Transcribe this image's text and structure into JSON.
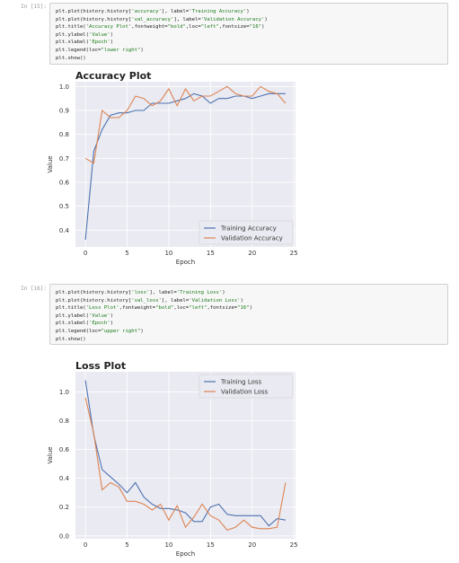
{
  "cells": [
    {
      "prompt": "In [15]:",
      "code": [
        [
          [
            "plt.plot(history.history[",
            ""
          ],
          [
            "'accuracy'",
            "s"
          ],
          [
            "], label=",
            ""
          ],
          [
            "'Training Accuracy'",
            "s"
          ],
          [
            ")",
            ""
          ]
        ],
        [
          [
            "plt.plot(history.history[",
            ""
          ],
          [
            "'val_accuracy'",
            "s"
          ],
          [
            "], label=",
            ""
          ],
          [
            "'Validation Accuracy'",
            "s"
          ],
          [
            ")",
            ""
          ]
        ],
        [
          [
            "plt.title(",
            ""
          ],
          [
            "'Accuracy Plot'",
            "s"
          ],
          [
            ",fontweight=",
            ""
          ],
          [
            "\"bold\"",
            "s"
          ],
          [
            ",loc=",
            ""
          ],
          [
            "\"left\"",
            "s"
          ],
          [
            ",fontsize=",
            ""
          ],
          [
            "\"16\"",
            "s"
          ],
          [
            ")",
            ""
          ]
        ],
        [
          [
            "plt.ylabel(",
            ""
          ],
          [
            "'Value'",
            "s"
          ],
          [
            ")",
            ""
          ]
        ],
        [
          [
            "plt.xlabel(",
            ""
          ],
          [
            "'Epoch'",
            "s"
          ],
          [
            ")",
            ""
          ]
        ],
        [
          [
            "plt.legend(loc=",
            ""
          ],
          [
            "\"lower right\"",
            "s"
          ],
          [
            ")",
            ""
          ]
        ],
        [
          [
            "plt.show()",
            ""
          ]
        ]
      ]
    },
    {
      "prompt": "In [16]:",
      "code": [
        [
          [
            "plt.plot(history.history[",
            ""
          ],
          [
            "'loss'",
            "s"
          ],
          [
            "], label=",
            ""
          ],
          [
            "'Training Loss'",
            "s"
          ],
          [
            ")",
            ""
          ]
        ],
        [
          [
            "plt.plot(history.history[",
            ""
          ],
          [
            "'val_loss'",
            "s"
          ],
          [
            "], label=",
            ""
          ],
          [
            "'Validation Loss'",
            "s"
          ],
          [
            ")",
            ""
          ]
        ],
        [
          [
            "plt.title(",
            ""
          ],
          [
            "'Loss Plot'",
            "s"
          ],
          [
            ",fontweight=",
            ""
          ],
          [
            "\"bold\"",
            "s"
          ],
          [
            ",loc=",
            ""
          ],
          [
            "\"left\"",
            "s"
          ],
          [
            ",fontsize=",
            ""
          ],
          [
            "\"16\"",
            "s"
          ],
          [
            ")",
            ""
          ]
        ],
        [
          [
            "plt.ylabel(",
            ""
          ],
          [
            "'Value'",
            "s"
          ],
          [
            ")",
            ""
          ]
        ],
        [
          [
            "plt.xlabel(",
            ""
          ],
          [
            "'Epoch'",
            "s"
          ],
          [
            ")",
            ""
          ]
        ],
        [
          [
            "plt.legend(loc=",
            ""
          ],
          [
            "\"upper right\"",
            "s"
          ],
          [
            ")",
            ""
          ]
        ],
        [
          [
            "plt.show()",
            ""
          ]
        ]
      ]
    }
  ],
  "chart_data": [
    {
      "type": "line",
      "title": "Accuracy Plot",
      "xlabel": "Epoch",
      "ylabel": "Value",
      "xlim": [
        -1.2,
        25.2
      ],
      "ylim": [
        0.33,
        1.02
      ],
      "xticks": [
        0,
        5,
        10,
        15,
        20,
        25
      ],
      "yticks": [
        0.4,
        0.5,
        0.6,
        0.7,
        0.8,
        0.9,
        1.0
      ],
      "ytick_labels": [
        "0.4",
        "0.5",
        "0.6",
        "0.7",
        "0.8",
        "0.9",
        "1.0"
      ],
      "legend_loc": "lower-right",
      "grid": true,
      "series": [
        {
          "name": "Training Accuracy",
          "color": "#4c72b0",
          "values": [
            0.36,
            0.73,
            0.82,
            0.88,
            0.89,
            0.89,
            0.9,
            0.9,
            0.93,
            0.93,
            0.93,
            0.94,
            0.95,
            0.97,
            0.96,
            0.93,
            0.95,
            0.95,
            0.96,
            0.96,
            0.95,
            0.96,
            0.97,
            0.97,
            0.97
          ]
        },
        {
          "name": "Validation Accuracy",
          "color": "#dd8452",
          "values": [
            0.7,
            0.68,
            0.9,
            0.87,
            0.87,
            0.9,
            0.96,
            0.95,
            0.92,
            0.94,
            0.99,
            0.92,
            0.99,
            0.94,
            0.96,
            0.96,
            0.98,
            1.0,
            0.97,
            0.96,
            0.96,
            1.0,
            0.98,
            0.97,
            0.93
          ]
        }
      ]
    },
    {
      "type": "line",
      "title": "Loss Plot",
      "xlabel": "Epoch",
      "ylabel": "Value",
      "xlim": [
        -1.2,
        25.2
      ],
      "ylim": [
        -0.02,
        1.14
      ],
      "xticks": [
        0,
        5,
        10,
        15,
        20,
        25
      ],
      "yticks": [
        0.0,
        0.2,
        0.4,
        0.6,
        0.8,
        1.0
      ],
      "ytick_labels": [
        "0.0",
        "0.2",
        "0.4",
        "0.6",
        "0.8",
        "1.0"
      ],
      "legend_loc": "upper-right",
      "grid": true,
      "series": [
        {
          "name": "Training Loss",
          "color": "#4c72b0",
          "values": [
            1.08,
            0.7,
            0.46,
            0.41,
            0.36,
            0.3,
            0.37,
            0.27,
            0.22,
            0.19,
            0.19,
            0.18,
            0.16,
            0.1,
            0.1,
            0.2,
            0.22,
            0.15,
            0.14,
            0.14,
            0.14,
            0.14,
            0.07,
            0.12,
            0.11
          ]
        },
        {
          "name": "Validation Loss",
          "color": "#dd8452",
          "values": [
            0.96,
            0.71,
            0.32,
            0.37,
            0.34,
            0.24,
            0.24,
            0.22,
            0.18,
            0.22,
            0.11,
            0.21,
            0.06,
            0.13,
            0.22,
            0.14,
            0.11,
            0.04,
            0.06,
            0.11,
            0.06,
            0.05,
            0.05,
            0.06,
            0.37
          ]
        }
      ]
    }
  ]
}
